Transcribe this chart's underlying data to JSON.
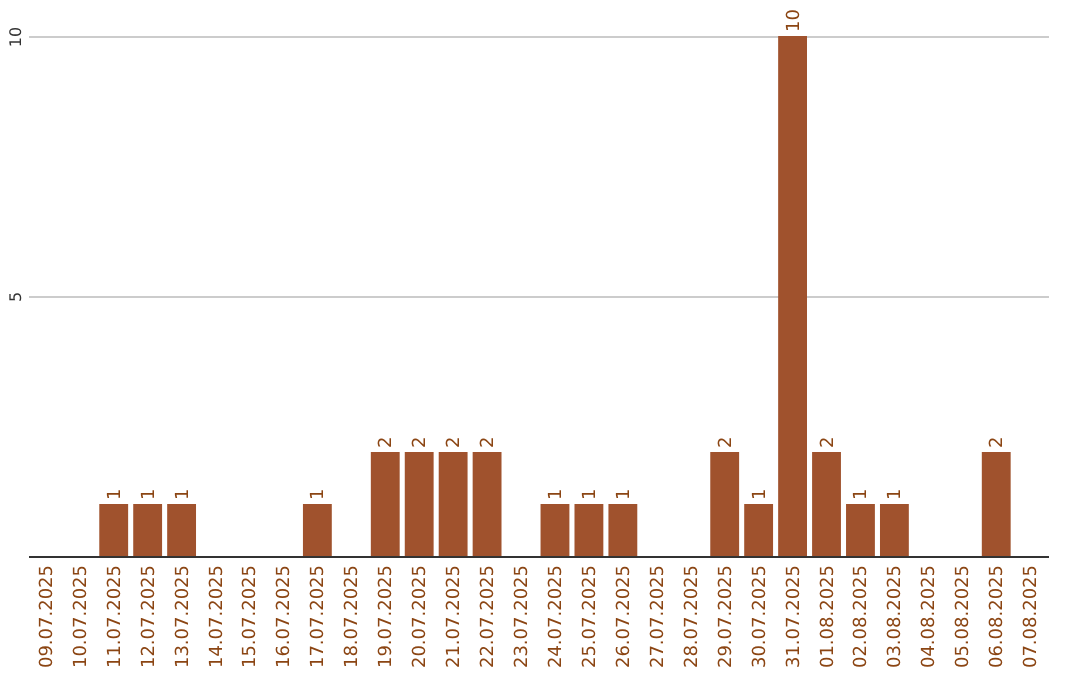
{
  "chart_data": {
    "type": "bar",
    "categories": [
      "09.07.2025",
      "10.07.2025",
      "11.07.2025",
      "12.07.2025",
      "13.07.2025",
      "14.07.2025",
      "15.07.2025",
      "16.07.2025",
      "17.07.2025",
      "18.07.2025",
      "19.07.2025",
      "20.07.2025",
      "21.07.2025",
      "22.07.2025",
      "23.07.2025",
      "24.07.2025",
      "25.07.2025",
      "26.07.2025",
      "27.07.2025",
      "28.07.2025",
      "29.07.2025",
      "30.07.2025",
      "31.07.2025",
      "01.08.2025",
      "02.08.2025",
      "03.08.2025",
      "04.08.2025",
      "05.08.2025",
      "06.08.2025",
      "07.08.2025"
    ],
    "values": [
      0,
      0,
      1,
      1,
      1,
      0,
      0,
      0,
      1,
      0,
      2,
      2,
      2,
      2,
      0,
      1,
      1,
      1,
      0,
      0,
      2,
      1,
      10,
      2,
      1,
      1,
      0,
      0,
      2,
      0
    ],
    "value_labels": [
      null,
      null,
      "1",
      "1",
      "1",
      null,
      null,
      null,
      "1",
      null,
      "2",
      "2",
      "2",
      "2",
      null,
      "1",
      "1",
      "1",
      null,
      null,
      "2",
      "1",
      "10",
      "2",
      "1",
      "1",
      null,
      null,
      "2",
      null
    ],
    "color": "#a0522d",
    "ylim": [
      0,
      10
    ],
    "yticks": [
      5,
      10
    ],
    "grid": "y"
  }
}
